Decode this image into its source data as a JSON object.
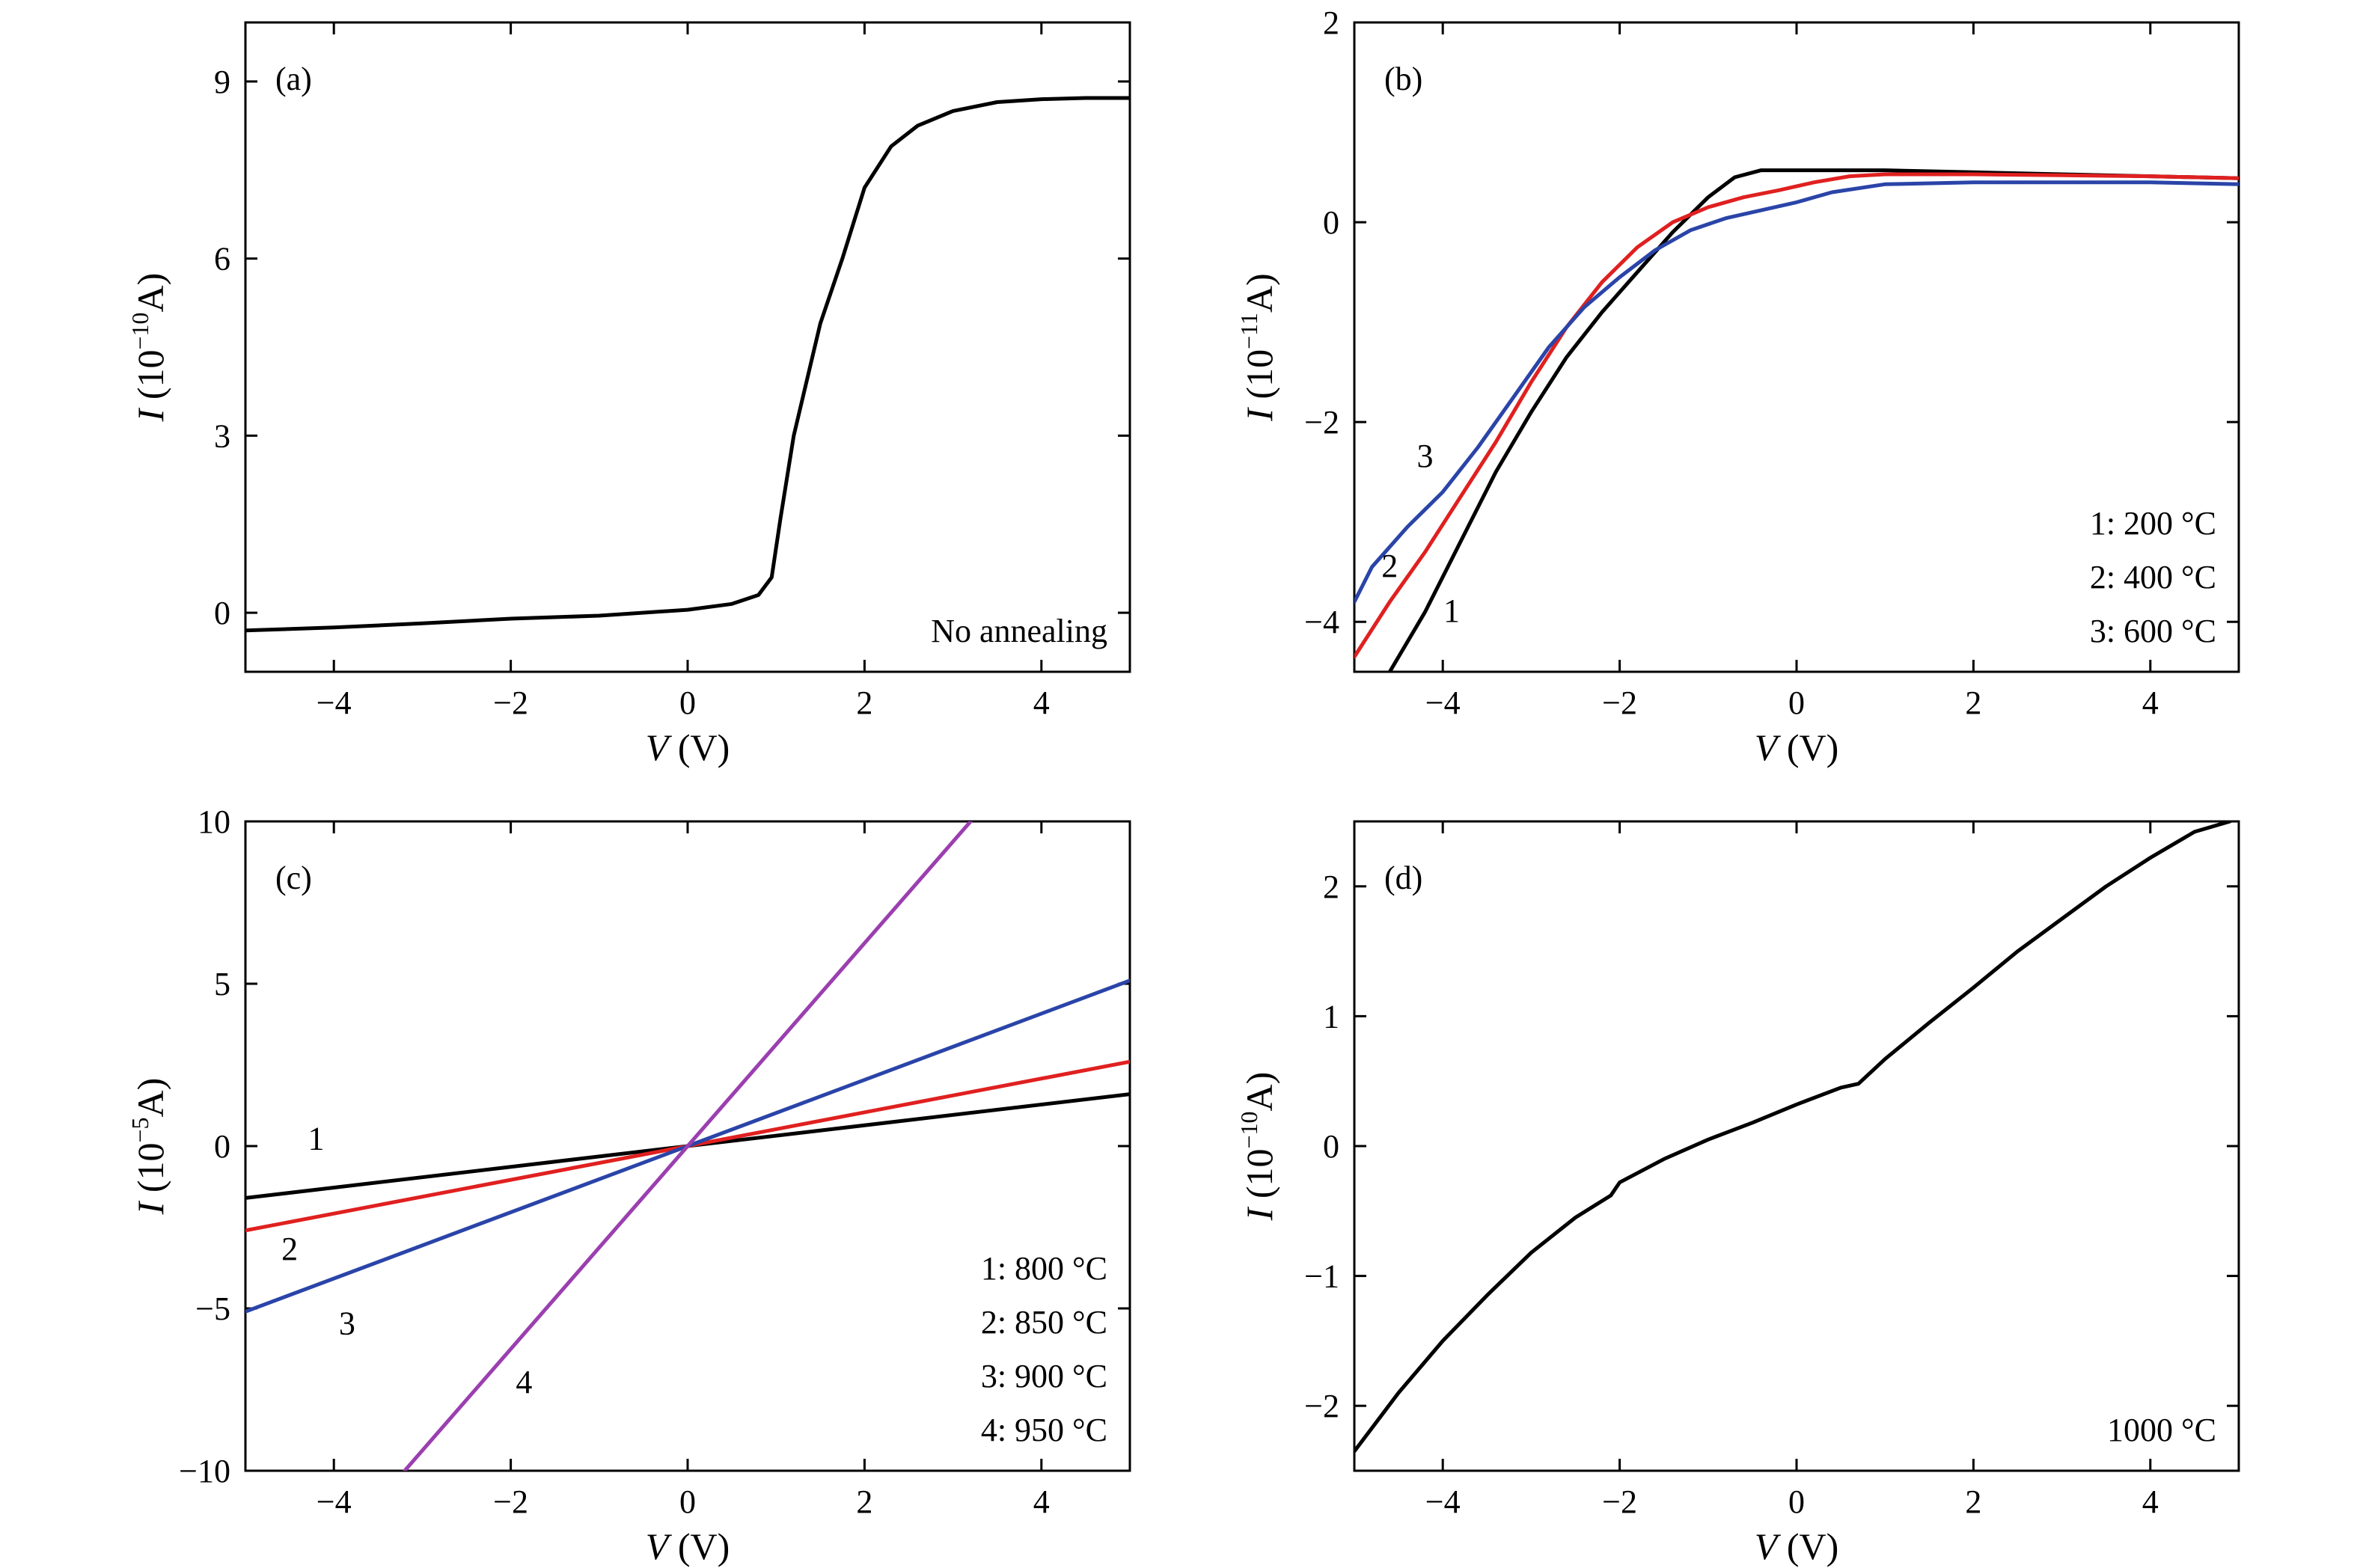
{
  "chart_data": [
    {
      "type": "line",
      "panel_label": "(a)",
      "annotation": "No annealing",
      "xlabel_var": "V",
      "xlabel_unit": " (V)",
      "ylabel_var": "I",
      "ylabel_pre": " (10",
      "ylabel_exp": "−10",
      "ylabel_post": "A)",
      "xlim": [
        -5,
        5
      ],
      "ylim": [
        -1,
        10
      ],
      "xticks": [
        -4,
        -2,
        0,
        2,
        4
      ],
      "yticks": [
        0,
        3,
        6,
        9
      ],
      "legend": [],
      "series": [
        {
          "color": "#000000",
          "x": [
            -5,
            -4,
            -3,
            -2,
            -1,
            0,
            0.5,
            0.8,
            0.95,
            1.05,
            1.2,
            1.5,
            1.75,
            2.0,
            2.3,
            2.6,
            3.0,
            3.5,
            4.0,
            4.5,
            5.0
          ],
          "y": [
            -0.3,
            -0.25,
            -0.18,
            -0.1,
            -0.05,
            0.05,
            0.15,
            0.3,
            0.6,
            1.6,
            3.0,
            4.9,
            6.0,
            7.2,
            7.9,
            8.25,
            8.5,
            8.65,
            8.7,
            8.72,
            8.72
          ]
        }
      ]
    },
    {
      "type": "line",
      "panel_label": "(b)",
      "annotation": "",
      "xlabel_var": "V",
      "xlabel_unit": " (V)",
      "ylabel_var": "I",
      "ylabel_pre": " (10",
      "ylabel_exp": "−11",
      "ylabel_post": "A)",
      "xlim": [
        -5,
        5
      ],
      "ylim": [
        -4.5,
        2
      ],
      "xticks": [
        -4,
        -2,
        0,
        2,
        4
      ],
      "yticks": [
        -4,
        -2,
        0,
        2
      ],
      "legend": [
        "1: 200 °C",
        "2: 400 °C",
        "3: 600 °C"
      ],
      "series": [
        {
          "name": "1",
          "color": "#000000",
          "x": [
            -4.6,
            -4.2,
            -3.8,
            -3.4,
            -3.0,
            -2.6,
            -2.2,
            -1.8,
            -1.4,
            -1.0,
            -0.7,
            -0.4,
            0,
            1,
            2,
            3,
            4,
            5
          ],
          "y": [
            -4.5,
            -3.9,
            -3.2,
            -2.5,
            -1.9,
            -1.35,
            -0.9,
            -0.5,
            -0.1,
            0.25,
            0.45,
            0.52,
            0.52,
            0.52,
            0.5,
            0.48,
            0.46,
            0.44
          ]
        },
        {
          "name": "2",
          "color": "#e02020",
          "x": [
            -5,
            -4.6,
            -4.2,
            -3.8,
            -3.4,
            -3.0,
            -2.6,
            -2.2,
            -1.8,
            -1.4,
            -1.0,
            -0.6,
            -0.2,
            0.2,
            0.6,
            1,
            2,
            3,
            4,
            5
          ],
          "y": [
            -4.35,
            -3.8,
            -3.3,
            -2.75,
            -2.2,
            -1.6,
            -1.05,
            -0.6,
            -0.25,
            0.0,
            0.15,
            0.25,
            0.32,
            0.4,
            0.46,
            0.48,
            0.48,
            0.47,
            0.46,
            0.44
          ]
        },
        {
          "name": "3",
          "color": "#2a44a8",
          "x": [
            -5,
            -4.8,
            -4.4,
            -4.0,
            -3.6,
            -3.2,
            -2.8,
            -2.4,
            -2.0,
            -1.6,
            -1.2,
            -0.8,
            -0.4,
            0,
            0.4,
            1,
            2,
            3,
            4,
            5
          ],
          "y": [
            -3.8,
            -3.45,
            -3.05,
            -2.7,
            -2.25,
            -1.75,
            -1.25,
            -0.85,
            -0.55,
            -0.28,
            -0.08,
            0.04,
            0.12,
            0.2,
            0.3,
            0.38,
            0.4,
            0.4,
            0.4,
            0.38
          ]
        }
      ],
      "curve_labels": [
        {
          "text": "1",
          "x": -3.9,
          "y": -4.0,
          "color": "#000000"
        },
        {
          "text": "2",
          "x": -4.6,
          "y": -3.55,
          "color": "#e02020"
        },
        {
          "text": "3",
          "x": -4.2,
          "y": -2.45,
          "color": "#2a44a8"
        }
      ]
    },
    {
      "type": "line",
      "panel_label": "(c)",
      "annotation": "",
      "xlabel_var": "V",
      "xlabel_unit": " (V)",
      "ylabel_var": "I",
      "ylabel_pre": " (10",
      "ylabel_exp": "−5",
      "ylabel_post": "A)",
      "xlim": [
        -5,
        5
      ],
      "ylim": [
        -10,
        10
      ],
      "xticks": [
        -4,
        -2,
        0,
        2,
        4
      ],
      "yticks": [
        -10,
        -5,
        0,
        5,
        10
      ],
      "legend": [
        "1: 800 °C",
        "2: 850 °C",
        "3: 900 °C",
        "4: 950 °C"
      ],
      "series": [
        {
          "name": "1",
          "color": "#000000",
          "x": [
            -5,
            5
          ],
          "y": [
            -1.6,
            1.6
          ]
        },
        {
          "name": "2",
          "color": "#e02020",
          "x": [
            -5,
            5
          ],
          "y": [
            -2.6,
            2.6
          ]
        },
        {
          "name": "3",
          "color": "#2a44a8",
          "x": [
            -5,
            5
          ],
          "y": [
            -5.1,
            5.1
          ]
        },
        {
          "name": "4",
          "color": "#9b3fb0",
          "x": [
            -3.2,
            3.2
          ],
          "y": [
            -10,
            10
          ]
        }
      ],
      "curve_labels": [
        {
          "text": "1",
          "x": -4.2,
          "y": -0.1,
          "color": "#000000"
        },
        {
          "text": "2",
          "x": -4.5,
          "y": -3.5,
          "color": "#e02020"
        },
        {
          "text": "3",
          "x": -3.85,
          "y": -5.8,
          "color": "#2a44a8"
        },
        {
          "text": "4",
          "x": -1.85,
          "y": -7.6,
          "color": "#9b3fb0"
        }
      ]
    },
    {
      "type": "line",
      "panel_label": "(d)",
      "annotation": "1000 °C",
      "xlabel_var": "V",
      "xlabel_unit": " (V)",
      "ylabel_var": "I",
      "ylabel_pre": " (10",
      "ylabel_exp": "−10",
      "ylabel_post": "A)",
      "xlim": [
        -5,
        5
      ],
      "ylim": [
        -2.5,
        2.5
      ],
      "xticks": [
        -4,
        -2,
        0,
        2,
        4
      ],
      "yticks": [
        -2,
        -1,
        0,
        1,
        2
      ],
      "legend": [],
      "series": [
        {
          "color": "#000000",
          "x": [
            -5,
            -4.5,
            -4,
            -3.5,
            -3,
            -2.5,
            -2.1,
            -2.0,
            -1.5,
            -1,
            -0.5,
            0,
            0.5,
            0.7,
            1,
            1.5,
            2,
            2.5,
            3,
            3.5,
            4,
            4.5,
            4.9
          ],
          "y": [
            -2.35,
            -1.9,
            -1.5,
            -1.15,
            -0.82,
            -0.55,
            -0.38,
            -0.28,
            -0.1,
            0.05,
            0.18,
            0.32,
            0.45,
            0.48,
            0.67,
            0.95,
            1.22,
            1.5,
            1.75,
            2.0,
            2.22,
            2.42,
            2.5
          ]
        }
      ]
    }
  ]
}
